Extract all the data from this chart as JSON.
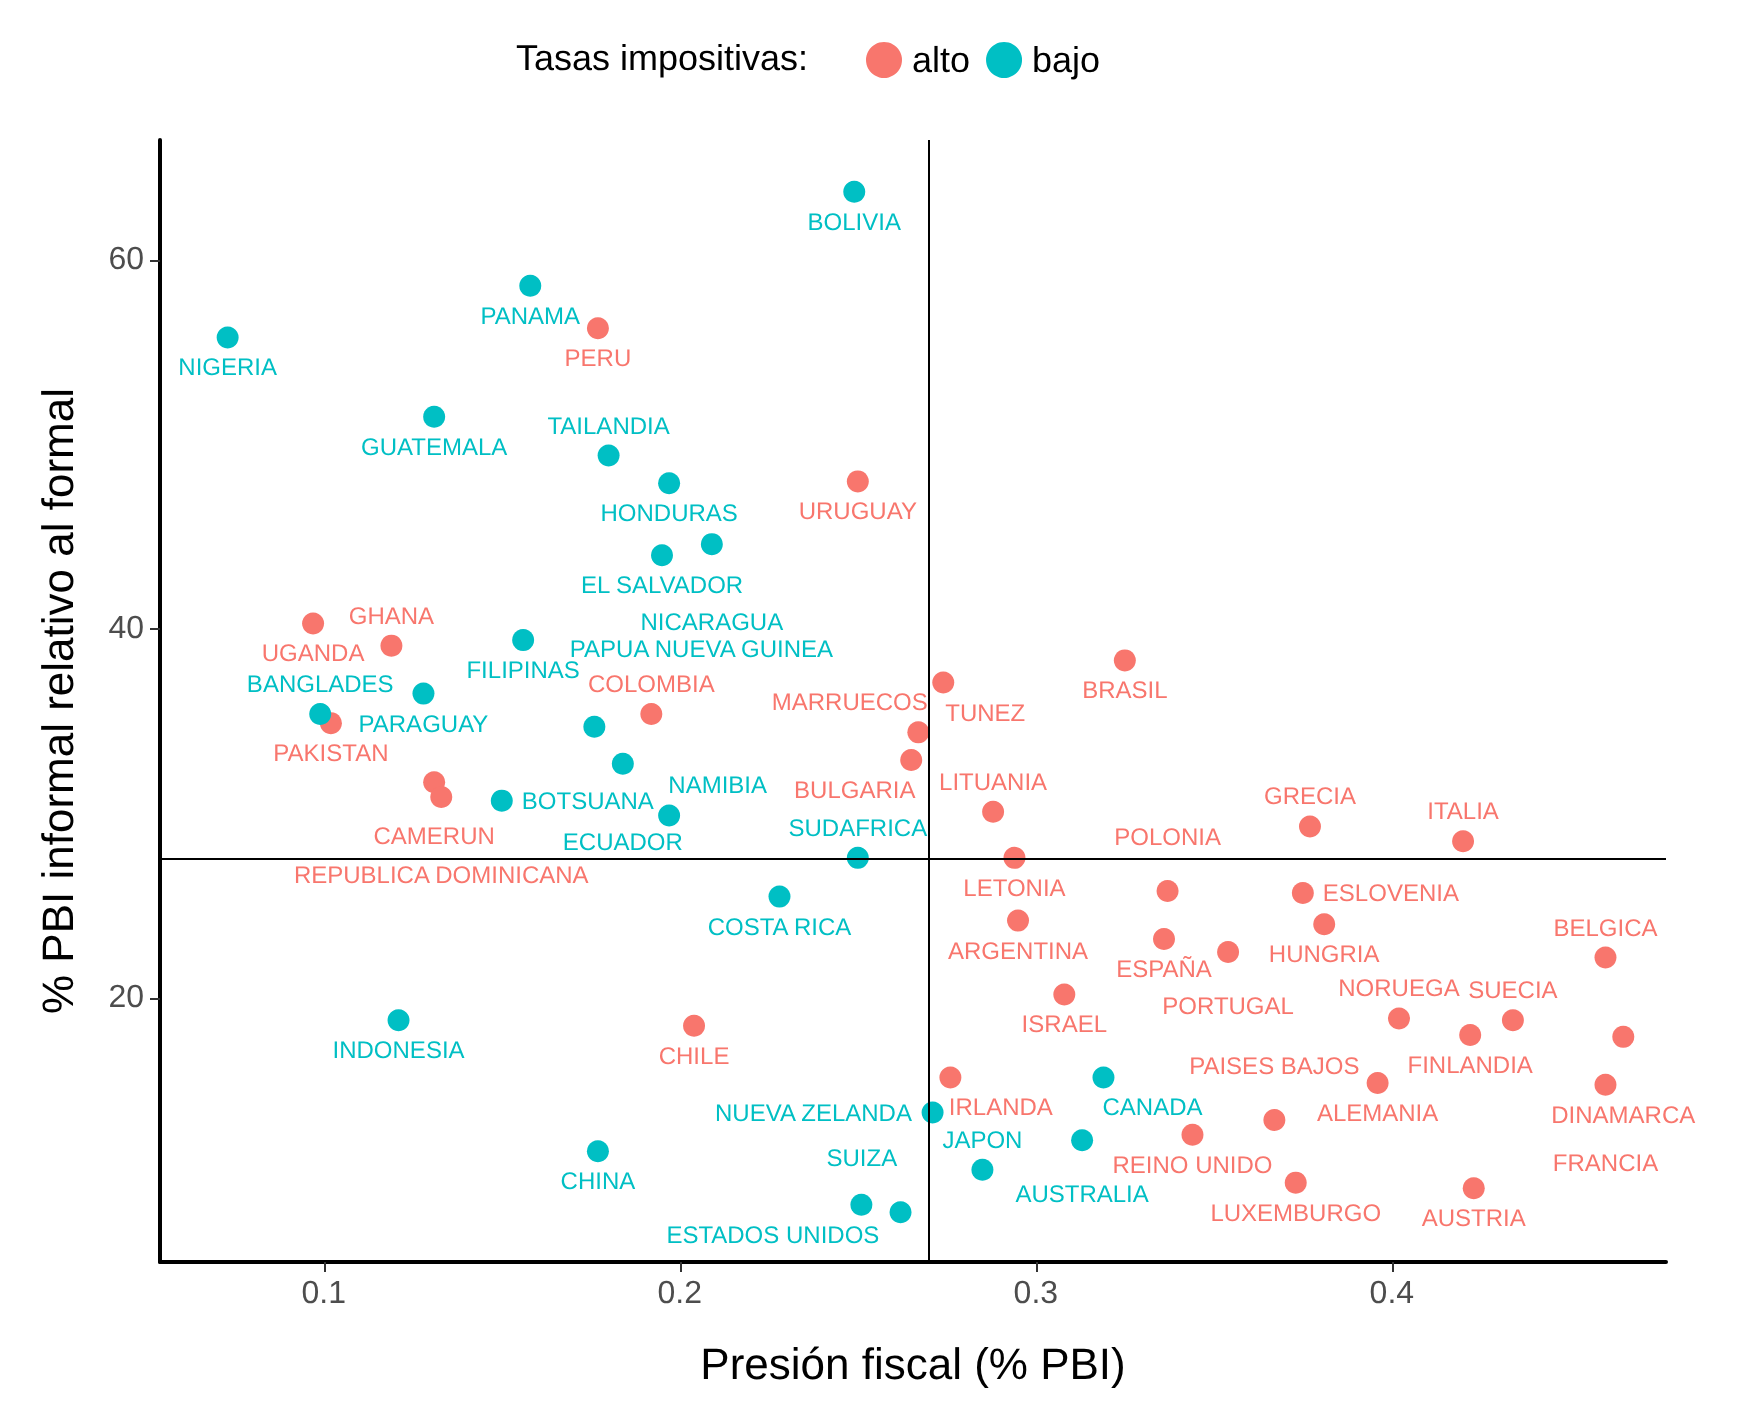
{
  "chart_data": {
    "type": "scatter",
    "xlabel": "Presión fiscal (% PBI)",
    "ylabel": "% PBI informal relativo al formal",
    "legend_title": "Tasas impositivas:",
    "legend": "top",
    "grid": false,
    "marker": "circle",
    "xlim": [
      0.054,
      0.477
    ],
    "ylim": [
      5.7,
      66.5
    ],
    "xticks": [
      0.1,
      0.2,
      0.3,
      0.4
    ],
    "yticks": [
      20,
      40,
      60
    ],
    "ref_lines": [
      {
        "axis": "x",
        "value": 0.271,
        "label": null,
        "color": "#000000"
      },
      {
        "axis": "y",
        "value": 27.6,
        "label": null,
        "color": "#000000"
      }
    ],
    "series": [
      {
        "name": "alto",
        "color": "#f8766d",
        "x": [
          0.177,
          0.25,
          0.097,
          0.119,
          0.102,
          0.131,
          0.133,
          0.192,
          0.204,
          0.274,
          0.267,
          0.265,
          0.288,
          0.294,
          0.295,
          0.325,
          0.337,
          0.336,
          0.354,
          0.308,
          0.276,
          0.344,
          0.377,
          0.375,
          0.381,
          0.402,
          0.396,
          0.367,
          0.373,
          0.422,
          0.423,
          0.42,
          0.434,
          0.46,
          0.465,
          0.46
        ],
        "values": [
          56.3,
          48.0,
          40.3,
          39.1,
          34.9,
          31.7,
          30.9,
          35.4,
          18.5,
          37.1,
          34.4,
          32.9,
          30.1,
          27.6,
          24.2,
          38.3,
          25.8,
          23.2,
          22.5,
          20.2,
          15.7,
          12.6,
          29.3,
          25.7,
          24.0,
          18.9,
          15.4,
          13.4,
          10.0,
          18.0,
          9.7,
          28.5,
          18.8,
          22.2,
          17.9,
          15.3
        ]
      },
      {
        "name": "bajo",
        "color": "#00bfc4",
        "x": [
          0.249,
          0.158,
          0.073,
          0.131,
          0.18,
          0.197,
          0.195,
          0.209,
          0.156,
          0.128,
          0.099,
          0.176,
          0.184,
          0.15,
          0.197,
          0.25,
          0.228,
          0.121,
          0.177,
          0.319,
          0.271,
          0.313,
          0.285,
          0.251,
          0.262
        ],
        "values": [
          63.7,
          58.6,
          55.8,
          51.5,
          49.4,
          47.9,
          44.0,
          44.6,
          39.4,
          36.5,
          35.4,
          34.7,
          32.7,
          30.7,
          29.9,
          27.6,
          25.5,
          18.8,
          11.7,
          15.7,
          13.8,
          12.3,
          10.7,
          8.8,
          8.4
        ]
      }
    ],
    "annotations": [
      {
        "text": "PERU",
        "x": 0.177,
        "y": 56.3
      },
      {
        "text": "URUGUAY",
        "x": 0.25,
        "y": 48.0
      },
      {
        "text": "UGANDA",
        "x": 0.097,
        "y": 40.3
      },
      {
        "text": "GHANA",
        "x": 0.119,
        "y": 39.1
      },
      {
        "text": "PAKISTAN",
        "x": 0.102,
        "y": 34.9
      },
      {
        "text": "CAMERUN",
        "x": 0.131,
        "y": 31.7
      },
      {
        "text": "REPUBLICA DOMINICANA",
        "x": 0.133,
        "y": 30.9
      },
      {
        "text": "COLOMBIA",
        "x": 0.192,
        "y": 35.4
      },
      {
        "text": "CHILE",
        "x": 0.204,
        "y": 18.5
      },
      {
        "text": "TUNEZ",
        "x": 0.274,
        "y": 37.1
      },
      {
        "text": "MARRUECOS",
        "x": 0.267,
        "y": 34.4
      },
      {
        "text": "BULGARIA",
        "x": 0.265,
        "y": 32.9
      },
      {
        "text": "LITUANIA",
        "x": 0.288,
        "y": 30.1
      },
      {
        "text": "LETONIA",
        "x": 0.294,
        "y": 27.6
      },
      {
        "text": "ARGENTINA",
        "x": 0.295,
        "y": 24.2
      },
      {
        "text": "BRASIL",
        "x": 0.325,
        "y": 38.3
      },
      {
        "text": "POLONIA",
        "x": 0.337,
        "y": 25.8
      },
      {
        "text": "ESPAÑA",
        "x": 0.336,
        "y": 23.2
      },
      {
        "text": "PORTUGAL",
        "x": 0.354,
        "y": 22.5
      },
      {
        "text": "ISRAEL",
        "x": 0.308,
        "y": 20.2
      },
      {
        "text": "IRLANDA",
        "x": 0.276,
        "y": 15.7
      },
      {
        "text": "REINO UNIDO",
        "x": 0.344,
        "y": 12.6
      },
      {
        "text": "GRECIA",
        "x": 0.377,
        "y": 29.3
      },
      {
        "text": "ESLOVENIA",
        "x": 0.375,
        "y": 25.7
      },
      {
        "text": "HUNGRIA",
        "x": 0.381,
        "y": 24.0
      },
      {
        "text": "NORUEGA",
        "x": 0.402,
        "y": 18.9
      },
      {
        "text": "ALEMANIA",
        "x": 0.396,
        "y": 15.4
      },
      {
        "text": "PAISES BAJOS",
        "x": 0.367,
        "y": 13.4
      },
      {
        "text": "LUXEMBURGO",
        "x": 0.373,
        "y": 10.0
      },
      {
        "text": "FINLANDIA",
        "x": 0.422,
        "y": 18.0
      },
      {
        "text": "AUSTRIA",
        "x": 0.423,
        "y": 9.7
      },
      {
        "text": "ITALIA",
        "x": 0.42,
        "y": 28.5
      },
      {
        "text": "SUECIA",
        "x": 0.434,
        "y": 18.8
      },
      {
        "text": "BELGICA",
        "x": 0.46,
        "y": 22.2
      },
      {
        "text": "DINAMARCA",
        "x": 0.465,
        "y": 17.9
      },
      {
        "text": "FRANCIA",
        "x": 0.46,
        "y": 15.3
      },
      {
        "text": "BOLIVIA",
        "x": 0.249,
        "y": 63.7
      },
      {
        "text": "PANAMA",
        "x": 0.158,
        "y": 58.6
      },
      {
        "text": "NIGERIA",
        "x": 0.073,
        "y": 55.8
      },
      {
        "text": "GUATEMALA",
        "x": 0.131,
        "y": 51.5
      },
      {
        "text": "TAILANDIA",
        "x": 0.18,
        "y": 49.4
      },
      {
        "text": "HONDURAS",
        "x": 0.197,
        "y": 47.9
      },
      {
        "text": "EL SALVADOR",
        "x": 0.195,
        "y": 44.0
      },
      {
        "text": "NICARAGUA",
        "x": 0.209,
        "y": 44.6
      },
      {
        "text": "FILIPINAS",
        "x": 0.156,
        "y": 39.4
      },
      {
        "text": "PARAGUAY",
        "x": 0.128,
        "y": 36.5
      },
      {
        "text": "BANGLADES",
        "x": 0.099,
        "y": 35.4
      },
      {
        "text": "PAPUA NUEVA GUINEA",
        "x": 0.176,
        "y": 34.7
      },
      {
        "text": "ECUADOR",
        "x": 0.184,
        "y": 32.7
      },
      {
        "text": "BOTSUANA",
        "x": 0.15,
        "y": 30.7
      },
      {
        "text": "NAMIBIA",
        "x": 0.197,
        "y": 29.9
      },
      {
        "text": "SUDAFRICA",
        "x": 0.25,
        "y": 27.6
      },
      {
        "text": "COSTA RICA",
        "x": 0.228,
        "y": 25.5
      },
      {
        "text": "INDONESIA",
        "x": 0.121,
        "y": 18.8
      },
      {
        "text": "CHINA",
        "x": 0.177,
        "y": 11.7
      },
      {
        "text": "CANADA",
        "x": 0.319,
        "y": 15.7
      },
      {
        "text": "NUEVA ZELANDA",
        "x": 0.271,
        "y": 13.8
      },
      {
        "text": "AUSTRALIA",
        "x": 0.313,
        "y": 12.3
      },
      {
        "text": "JAPON",
        "x": 0.285,
        "y": 10.7
      },
      {
        "text": "ESTADOS UNIDOS",
        "x": 0.251,
        "y": 8.8
      },
      {
        "text": "SUIZA",
        "x": 0.262,
        "y": 8.4
      }
    ]
  }
}
